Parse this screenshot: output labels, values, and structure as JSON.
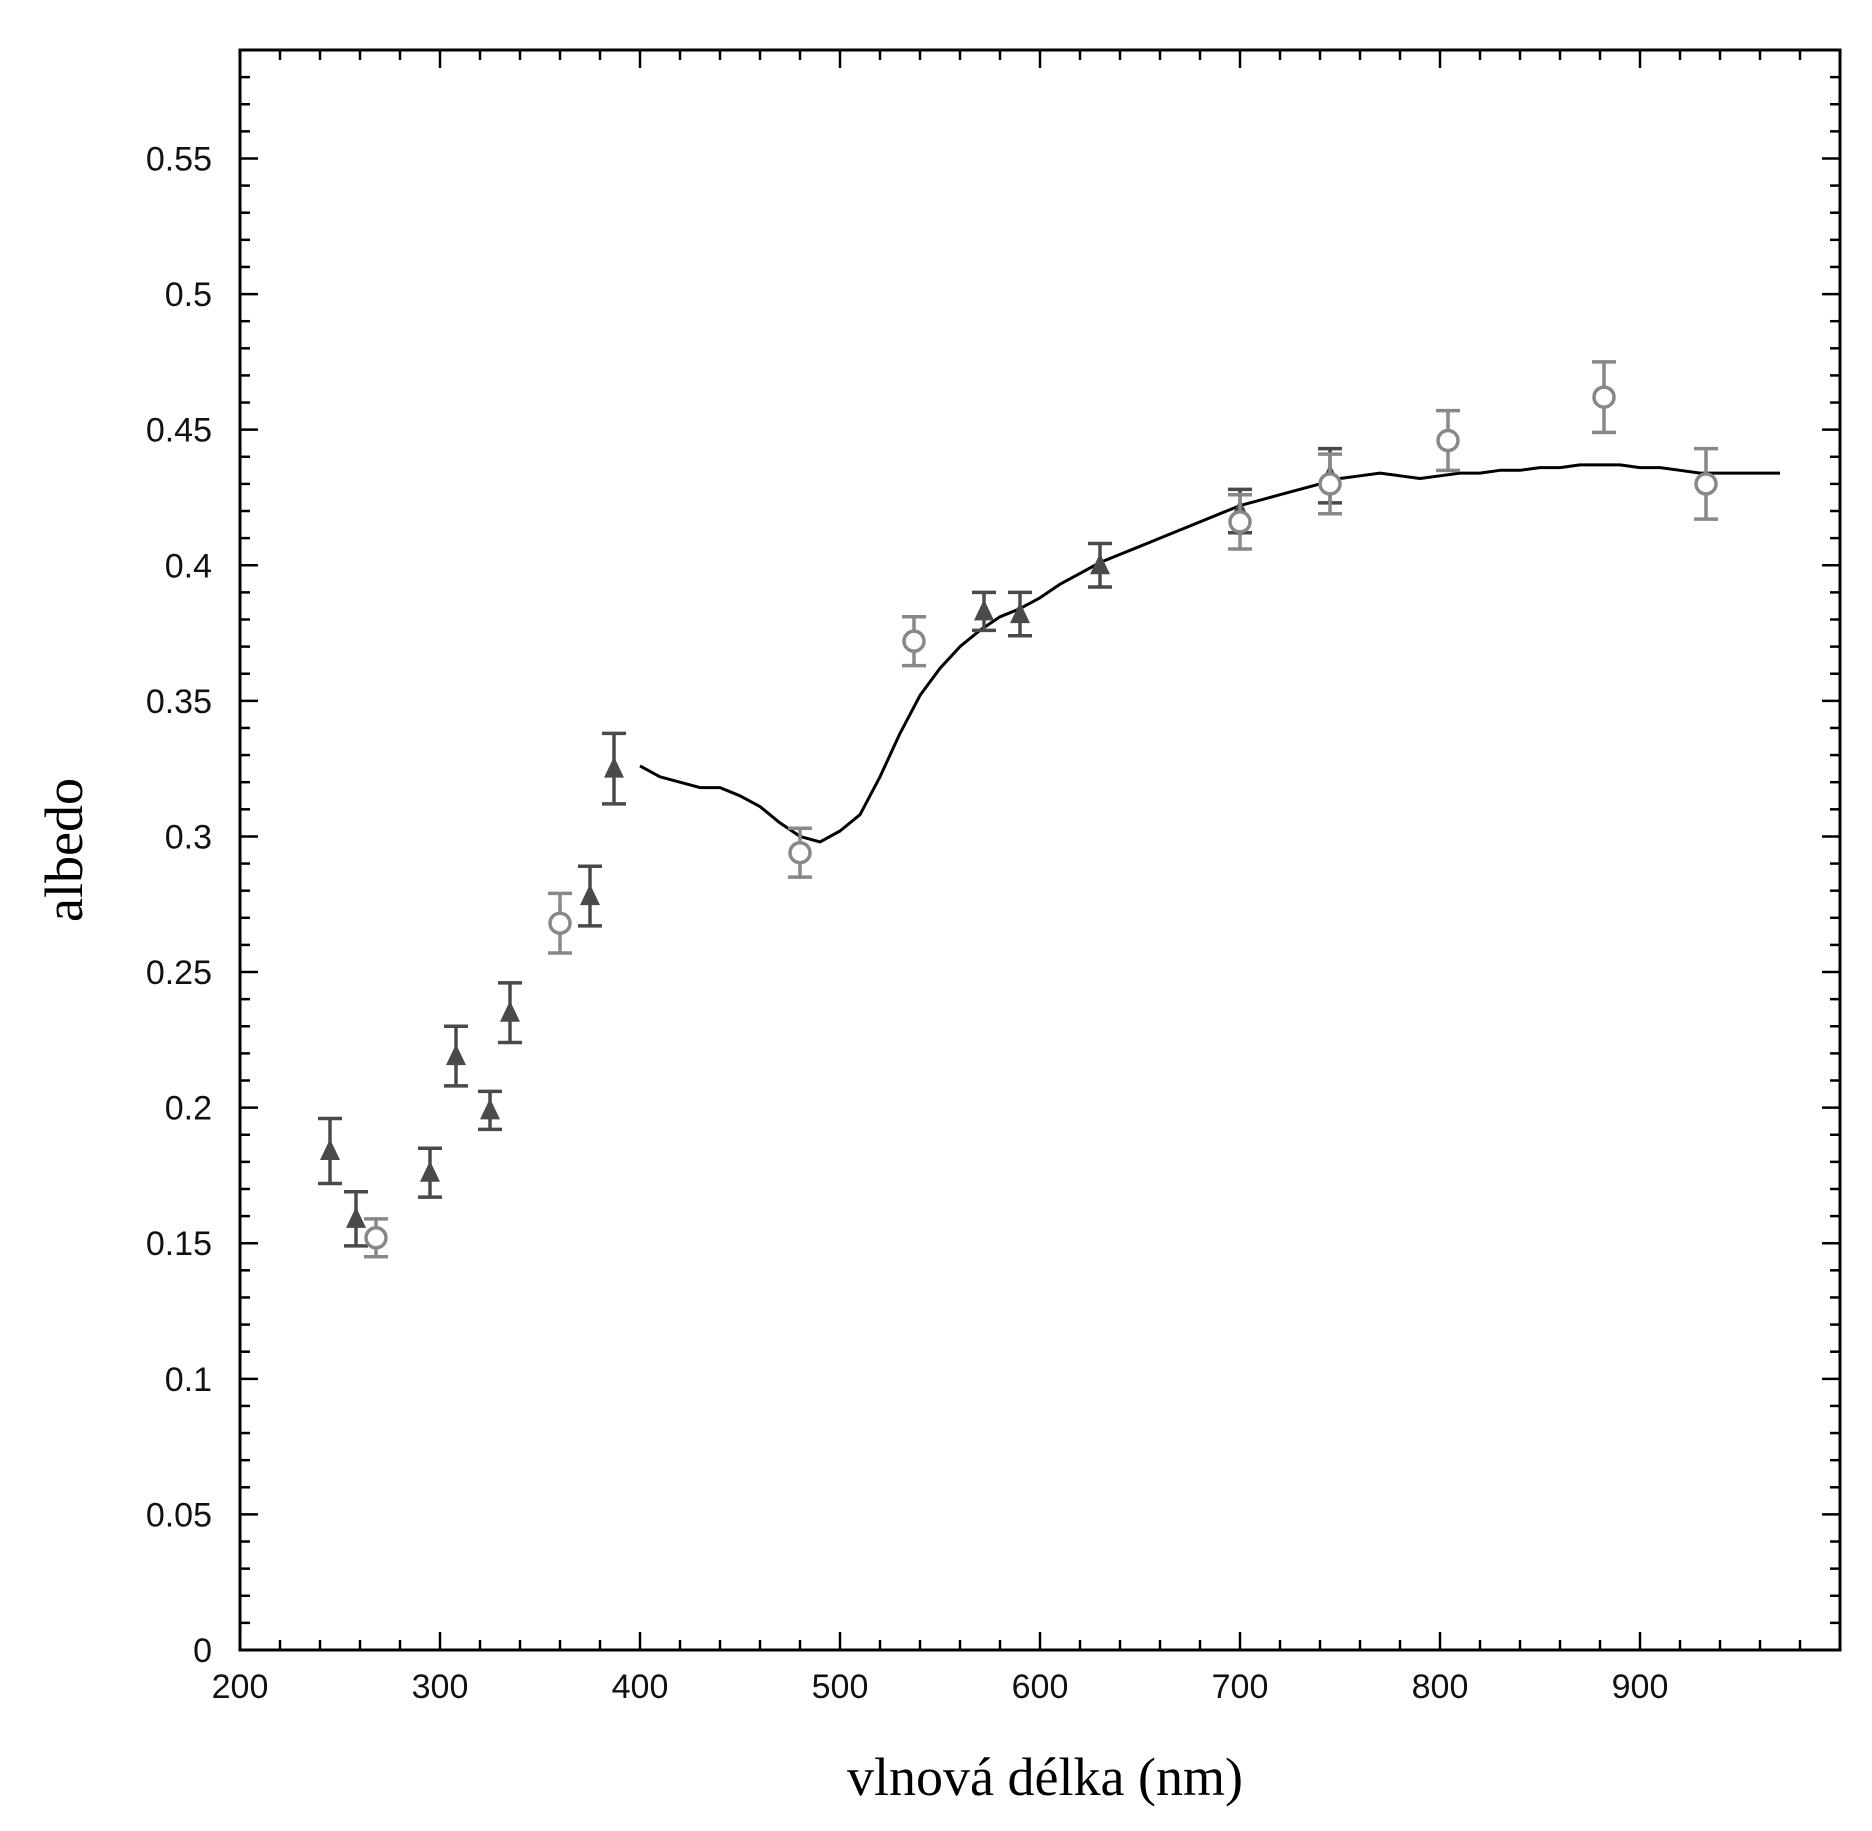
{
  "chart_data": {
    "type": "scatter",
    "title": "",
    "xlabel": "vlnová délka (nm)",
    "ylabel": "albedo",
    "xlim": [
      200,
      1000
    ],
    "ylim": [
      0,
      0.59
    ],
    "xticks": [
      200,
      300,
      400,
      500,
      600,
      700,
      800,
      900
    ],
    "xtick_labels": [
      "200",
      "300",
      "400",
      "500",
      "600",
      "700",
      "800",
      "900"
    ],
    "yticks": [
      0,
      0.05,
      0.1,
      0.15,
      0.2,
      0.25,
      0.3,
      0.35,
      0.4,
      0.45,
      0.5,
      0.55
    ],
    "ytick_labels": [
      "0",
      "0.05",
      "0.1",
      "0.15",
      "0.2",
      "0.25",
      "0.3",
      "0.35",
      "0.4",
      "0.45",
      "0.5",
      "0.55"
    ],
    "grid": false,
    "legend": "none",
    "series": [
      {
        "marker": "triangle",
        "color": "#4a4a4a",
        "points": [
          {
            "x": 245,
            "y": 0.184,
            "err": 0.012
          },
          {
            "x": 258,
            "y": 0.159,
            "err": 0.01
          },
          {
            "x": 295,
            "y": 0.176,
            "err": 0.009
          },
          {
            "x": 308,
            "y": 0.219,
            "err": 0.011
          },
          {
            "x": 325,
            "y": 0.199,
            "err": 0.007
          },
          {
            "x": 335,
            "y": 0.235,
            "err": 0.011
          },
          {
            "x": 375,
            "y": 0.278,
            "err": 0.011
          },
          {
            "x": 387,
            "y": 0.325,
            "err": 0.013
          },
          {
            "x": 572,
            "y": 0.383,
            "err": 0.007
          },
          {
            "x": 590,
            "y": 0.382,
            "err": 0.008
          },
          {
            "x": 630,
            "y": 0.4,
            "err": 0.008
          },
          {
            "x": 700,
            "y": 0.42,
            "err": 0.008
          },
          {
            "x": 745,
            "y": 0.433,
            "err": 0.01
          }
        ]
      },
      {
        "marker": "circle",
        "color": "#888888",
        "points": [
          {
            "x": 268,
            "y": 0.152,
            "err": 0.007
          },
          {
            "x": 360,
            "y": 0.268,
            "err": 0.011
          },
          {
            "x": 480,
            "y": 0.294,
            "err": 0.009
          },
          {
            "x": 537,
            "y": 0.372,
            "err": 0.009
          },
          {
            "x": 700,
            "y": 0.416,
            "err": 0.01
          },
          {
            "x": 745,
            "y": 0.43,
            "err": 0.011
          },
          {
            "x": 804,
            "y": 0.446,
            "err": 0.011
          },
          {
            "x": 882,
            "y": 0.462,
            "err": 0.013
          },
          {
            "x": 933,
            "y": 0.43,
            "err": 0.013
          }
        ]
      },
      {
        "marker": "line",
        "color": "#000000",
        "x": [
          400,
          410,
          420,
          430,
          440,
          450,
          460,
          470,
          480,
          490,
          500,
          510,
          520,
          530,
          540,
          550,
          560,
          570,
          580,
          590,
          600,
          610,
          620,
          630,
          640,
          650,
          660,
          670,
          680,
          690,
          700,
          710,
          720,
          730,
          740,
          750,
          760,
          770,
          780,
          790,
          800,
          810,
          820,
          830,
          840,
          850,
          860,
          870,
          880,
          890,
          900,
          910,
          920,
          930,
          940,
          950,
          960,
          970
        ],
        "y": [
          0.326,
          0.322,
          0.32,
          0.318,
          0.318,
          0.315,
          0.311,
          0.305,
          0.3,
          0.298,
          0.302,
          0.308,
          0.322,
          0.338,
          0.352,
          0.362,
          0.37,
          0.376,
          0.381,
          0.384,
          0.388,
          0.393,
          0.397,
          0.401,
          0.404,
          0.407,
          0.41,
          0.413,
          0.416,
          0.419,
          0.422,
          0.424,
          0.426,
          0.428,
          0.43,
          0.432,
          0.433,
          0.434,
          0.433,
          0.432,
          0.433,
          0.434,
          0.434,
          0.435,
          0.435,
          0.436,
          0.436,
          0.437,
          0.437,
          0.437,
          0.436,
          0.436,
          0.435,
          0.434,
          0.434,
          0.434,
          0.434,
          0.434
        ]
      }
    ]
  }
}
